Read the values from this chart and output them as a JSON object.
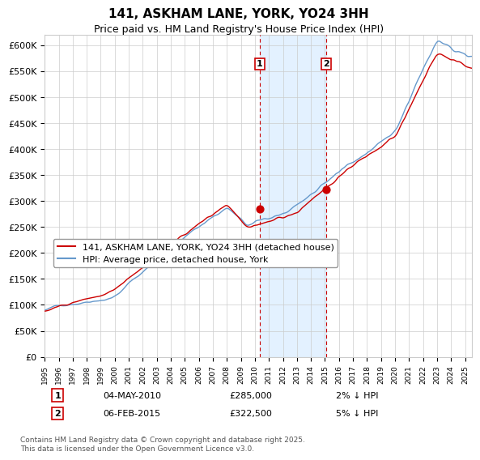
{
  "title": "141, ASKHAM LANE, YORK, YO24 3HH",
  "subtitle": "Price paid vs. HM Land Registry's House Price Index (HPI)",
  "xlabel": "",
  "ylabel": "",
  "ylim": [
    0,
    620000
  ],
  "xlim_start": 1995.0,
  "xlim_end": 2025.5,
  "yticks": [
    0,
    50000,
    100000,
    150000,
    200000,
    250000,
    300000,
    350000,
    400000,
    450000,
    500000,
    550000,
    600000
  ],
  "ytick_labels": [
    "£0",
    "£50K",
    "£100K",
    "£150K",
    "£200K",
    "£250K",
    "£300K",
    "£350K",
    "£400K",
    "£450K",
    "£500K",
    "£550K",
    "£600K"
  ],
  "xtick_years": [
    1995,
    1996,
    1997,
    1998,
    1999,
    2000,
    2001,
    2002,
    2003,
    2004,
    2005,
    2006,
    2007,
    2008,
    2009,
    2010,
    2011,
    2012,
    2013,
    2014,
    2015,
    2016,
    2017,
    2018,
    2019,
    2020,
    2021,
    2022,
    2023,
    2024,
    2025
  ],
  "line_red_color": "#cc0000",
  "line_blue_color": "#6699cc",
  "shading_color": "#ddeeff",
  "point1_x": 2010.34,
  "point1_y": 285000,
  "point2_x": 2015.09,
  "point2_y": 322500,
  "vline1_x": 2010.34,
  "vline2_x": 2015.09,
  "legend_line1": "141, ASKHAM LANE, YORK, YO24 3HH (detached house)",
  "legend_line2": "HPI: Average price, detached house, York",
  "annotation1_label": "1",
  "annotation2_label": "2",
  "annotation1_date": "04-MAY-2010",
  "annotation1_price": "£285,000",
  "annotation1_hpi": "2% ↓ HPI",
  "annotation2_date": "06-FEB-2015",
  "annotation2_price": "£322,500",
  "annotation2_hpi": "5% ↓ HPI",
  "footer": "Contains HM Land Registry data © Crown copyright and database right 2025.\nThis data is licensed under the Open Government Licence v3.0.",
  "background_color": "#ffffff",
  "grid_color": "#cccccc",
  "title_fontsize": 11,
  "subtitle_fontsize": 9,
  "axis_fontsize": 8,
  "legend_fontsize": 8
}
